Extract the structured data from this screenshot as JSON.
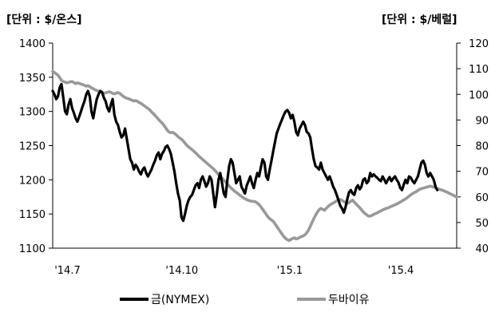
{
  "chart_data": {
    "type": "line",
    "left_axis": {
      "unit_label": "[단위 : $/온스]",
      "ylim": [
        1100,
        1400
      ],
      "ticks": [
        1100,
        1150,
        1200,
        1250,
        1300,
        1350,
        1400
      ]
    },
    "right_axis": {
      "unit_label": "[단위 : $/베럴]",
      "ylim": [
        40,
        120
      ],
      "ticks": [
        40,
        50,
        60,
        70,
        80,
        90,
        100,
        110,
        120
      ]
    },
    "x_tick_labels": [
      "'14.7",
      "'14.10",
      "'15.1",
      "'15.4"
    ],
    "x_tick_index": [
      1,
      64,
      127,
      190
    ],
    "series": [
      {
        "name": "금(NYMEX)",
        "axis": "left",
        "color": "#000000",
        "values": [
          1330,
          1325,
          1318,
          1322,
          1335,
          1340,
          1320,
          1300,
          1296,
          1310,
          1318,
          1305,
          1298,
          1290,
          1285,
          1292,
          1300,
          1308,
          1315,
          1325,
          1330,
          1322,
          1300,
          1290,
          1305,
          1318,
          1325,
          1330,
          1328,
          1320,
          1315,
          1305,
          1300,
          1310,
          1318,
          1295,
          1285,
          1280,
          1270,
          1262,
          1265,
          1275,
          1260,
          1245,
          1230,
          1225,
          1215,
          1222,
          1218,
          1212,
          1208,
          1215,
          1218,
          1210,
          1205,
          1210,
          1215,
          1222,
          1228,
          1236,
          1240,
          1230,
          1238,
          1242,
          1248,
          1250,
          1245,
          1238,
          1225,
          1212,
          1195,
          1180,
          1170,
          1145,
          1140,
          1150,
          1162,
          1170,
          1175,
          1178,
          1185,
          1192,
          1195,
          1188,
          1200,
          1205,
          1198,
          1190,
          1195,
          1205,
          1200,
          1180,
          1160,
          1178,
          1200,
          1210,
          1195,
          1180,
          1175,
          1200,
          1220,
          1230,
          1225,
          1210,
          1195,
          1200,
          1205,
          1190,
          1185,
          1180,
          1192,
          1198,
          1205,
          1195,
          1188,
          1200,
          1210,
          1205,
          1218,
          1230,
          1225,
          1205,
          1200,
          1215,
          1228,
          1242,
          1255,
          1268,
          1275,
          1282,
          1288,
          1295,
          1300,
          1302,
          1298,
          1290,
          1295,
          1285,
          1270,
          1265,
          1275,
          1280,
          1285,
          1280,
          1270,
          1268,
          1262,
          1245,
          1230,
          1220,
          1218,
          1215,
          1225,
          1215,
          1210,
          1205,
          1200,
          1205,
          1198,
          1190,
          1185,
          1178,
          1170,
          1162,
          1158,
          1152,
          1160,
          1172,
          1182,
          1185,
          1180,
          1178,
          1188,
          1192,
          1186,
          1190,
          1200,
          1202,
          1195,
          1198,
          1210,
          1205,
          1208,
          1205,
          1203,
          1200,
          1198,
          1205,
          1200,
          1195,
          1200,
          1204,
          1198,
          1202,
          1205,
          1200,
          1196,
          1188,
          1185,
          1193,
          1200,
          1195,
          1205,
          1203,
          1198,
          1195,
          1200,
          1205,
          1215,
          1225,
          1228,
          1222,
          1210,
          1205,
          1210,
          1205,
          1200,
          1190,
          1185
        ]
      },
      {
        "name": "두바이유",
        "axis": "right",
        "color": "#999999",
        "values": [
          109,
          108.5,
          108,
          107.5,
          106.5,
          105.5,
          105,
          104.8,
          104.5,
          104.7,
          104.9,
          105,
          104.6,
          104.2,
          104.5,
          104.3,
          104,
          103.8,
          103.5,
          103.2,
          103.4,
          103,
          102.5,
          102.2,
          101.8,
          101.5,
          101.3,
          101,
          100.7,
          100.4,
          100.6,
          100.8,
          101,
          100.8,
          100.4,
          100.2,
          100.5,
          100.7,
          100.4,
          99.8,
          99.2,
          98.8,
          98.5,
          98.3,
          98,
          97.7,
          97.4,
          97.6,
          97.3,
          96.8,
          96.5,
          96,
          95.5,
          95,
          94.5,
          94,
          93.2,
          92.5,
          91.8,
          91,
          90.2,
          89.5,
          88.8,
          88,
          87,
          86,
          85.3,
          85,
          85.2,
          84.8,
          84.2,
          83.5,
          83,
          82.5,
          81.8,
          81,
          80.2,
          79.5,
          79,
          78.4,
          77.8,
          77.2,
          76.5,
          75.8,
          75.2,
          74.6,
          74,
          73.4,
          72.8,
          72.2,
          71.6,
          71,
          70.3,
          69.5,
          68.7,
          68,
          67.3,
          66.5,
          65.8,
          65,
          64.3,
          63.5,
          62.9,
          62.3,
          61.8,
          61.3,
          60.7,
          60.2,
          59.7,
          59.3,
          58.9,
          58.6,
          58.4,
          58.3,
          58.2,
          58.1,
          57.6,
          57,
          56.2,
          55.2,
          54.2,
          53.2,
          52.2,
          51.5,
          51,
          50.5,
          49.5,
          48.5,
          47.5,
          46.5,
          45.5,
          44.5,
          43.8,
          43.3,
          43,
          43.4,
          43.8,
          44,
          43.6,
          43.8,
          44.2,
          44.5,
          44.8,
          45.2,
          46,
          47,
          48.5,
          50,
          51.5,
          52.8,
          54,
          55,
          55.5,
          55.2,
          54.8,
          55.5,
          56.2,
          56.8,
          57.2,
          57.6,
          58,
          58.5,
          58.8,
          59,
          58.6,
          58.2,
          57.8,
          57.4,
          57.8,
          58.3,
          58.7,
          58,
          57.2,
          56.5,
          55.8,
          55,
          54.2,
          53.5,
          53,
          52.5,
          52.5,
          52.8,
          53.2,
          53.5,
          53.8,
          54.2,
          54.5,
          54.9,
          55.2,
          55.5,
          55.7,
          56,
          56.3,
          56.6,
          56.9,
          57.2,
          57.6,
          58,
          58.4,
          58.8,
          59.2,
          59.7,
          60.3,
          60.8,
          61.3,
          61.7,
          62,
          62.5,
          63,
          63.2,
          63.4,
          63.6,
          63.8,
          64,
          64.2,
          64,
          63.8,
          63.5,
          63.2,
          63,
          62.8,
          62.6,
          62.3,
          62,
          61.7,
          61.3,
          61,
          60.7,
          60.3,
          60
        ]
      }
    ],
    "legend_position": "bottom",
    "grid": false
  }
}
